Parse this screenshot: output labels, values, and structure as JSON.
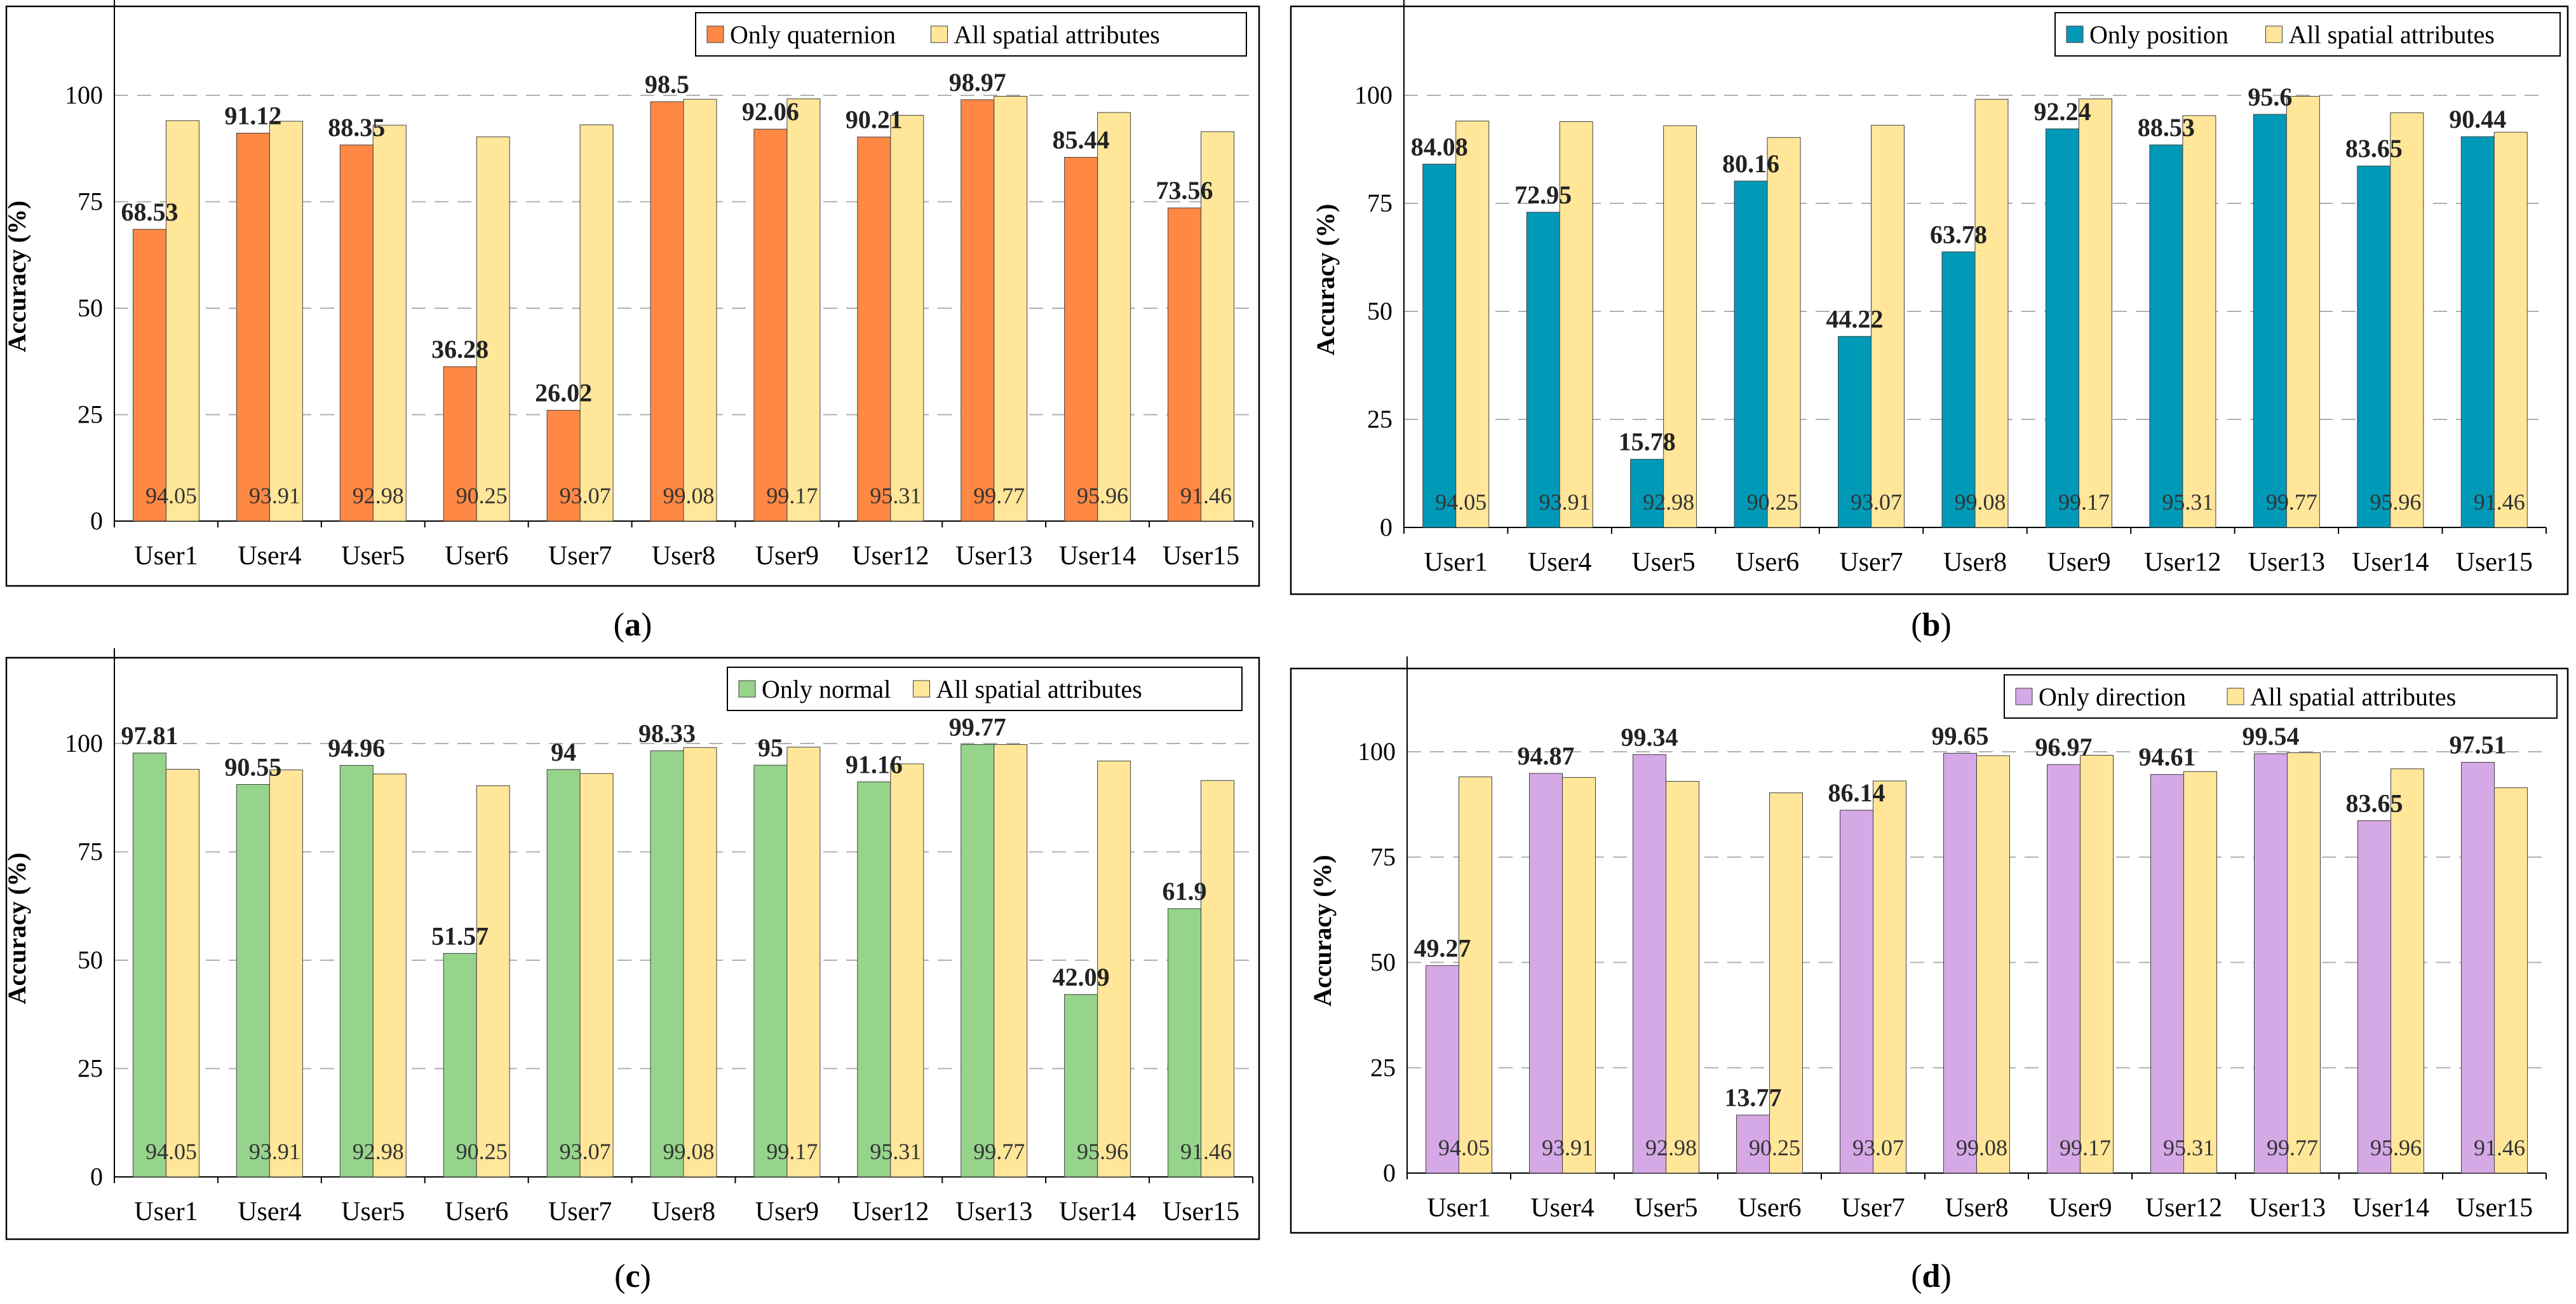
{
  "figure": {
    "comparison_name": "All spatial attributes",
    "comparison_color": "#FFE699",
    "bar_outline": "#404040"
  },
  "chart_data": [
    {
      "type": "bar",
      "panel_label": "(a)",
      "title": "",
      "xlabel": "",
      "ylabel": "Accuracy  (%)",
      "ylim": [
        0,
        115
      ],
      "yticks": [
        0,
        25,
        50,
        75,
        100
      ],
      "grid": true,
      "legend_position": "top-right",
      "categories": [
        "User1",
        "User4",
        "User5",
        "User6",
        "User7",
        "User8",
        "User9",
        "User12",
        "User13",
        "User14",
        "User15"
      ],
      "series": [
        {
          "name": "Only quaternion",
          "color": "#FF8844",
          "values": [
            68.53,
            91.12,
            88.35,
            36.28,
            26.02,
            98.5,
            92.06,
            90.21,
            98.97,
            85.44,
            73.56
          ]
        },
        {
          "name": "All spatial attributes",
          "color": "#FFE699",
          "values": [
            94.05,
            93.91,
            92.98,
            90.25,
            93.07,
            99.08,
            99.17,
            95.31,
            99.77,
            95.96,
            91.46
          ]
        }
      ]
    },
    {
      "type": "bar",
      "panel_label": "(b)",
      "title": "",
      "xlabel": "",
      "ylabel": "Accuracy  (%)",
      "ylim": [
        0,
        115
      ],
      "yticks": [
        0,
        25,
        50,
        75,
        100
      ],
      "grid": true,
      "legend_position": "top-right",
      "categories": [
        "User1",
        "User4",
        "User5",
        "User6",
        "User7",
        "User8",
        "User9",
        "User12",
        "User13",
        "User14",
        "User15"
      ],
      "series": [
        {
          "name": "Only position",
          "color": "#0099B8",
          "values": [
            84.08,
            72.95,
            15.78,
            80.16,
            44.22,
            63.78,
            92.24,
            88.53,
            95.6,
            83.65,
            90.44
          ]
        },
        {
          "name": "All spatial attributes",
          "color": "#FFE699",
          "values": [
            94.05,
            93.91,
            92.98,
            90.25,
            93.07,
            99.08,
            99.17,
            95.31,
            99.77,
            95.96,
            91.46
          ]
        }
      ]
    },
    {
      "type": "bar",
      "panel_label": "(c)",
      "title": "",
      "xlabel": "",
      "ylabel": "Accuracy  (%)",
      "ylim": [
        0,
        115
      ],
      "yticks": [
        0,
        25,
        50,
        75,
        100
      ],
      "grid": true,
      "legend_position": "top-right",
      "categories": [
        "User1",
        "User4",
        "User5",
        "User6",
        "User7",
        "User8",
        "User9",
        "User12",
        "User13",
        "User14",
        "User15"
      ],
      "series": [
        {
          "name": "Only normal",
          "color": "#96D48C",
          "values": [
            97.81,
            90.55,
            94.96,
            51.57,
            94,
            98.33,
            95,
            91.16,
            99.77,
            42.09,
            61.9
          ]
        },
        {
          "name": "All spatial attributes",
          "color": "#FFE699",
          "values": [
            94.05,
            93.91,
            92.98,
            90.25,
            93.07,
            99.08,
            99.17,
            95.31,
            99.77,
            95.96,
            91.46
          ]
        }
      ]
    },
    {
      "type": "bar",
      "panel_label": "(d)",
      "title": "",
      "xlabel": "",
      "ylabel": "Accuracy  (%)",
      "ylim": [
        0,
        115
      ],
      "yticks": [
        0,
        25,
        50,
        75,
        100
      ],
      "grid": true,
      "legend_position": "top-right",
      "categories": [
        "User1",
        "User4",
        "User5",
        "User6",
        "User7",
        "User8",
        "User9",
        "User12",
        "User13",
        "User14",
        "User15"
      ],
      "series": [
        {
          "name": "Only direction",
          "color": "#D5A8E6",
          "values": [
            49.27,
            94.87,
            99.34,
            13.77,
            86.14,
            99.65,
            96.97,
            94.61,
            99.54,
            83.65,
            97.51
          ]
        },
        {
          "name": "All spatial attributes",
          "color": "#FFE699",
          "values": [
            94.05,
            93.91,
            92.98,
            90.25,
            93.07,
            99.08,
            99.17,
            95.31,
            99.77,
            95.96,
            91.46
          ]
        }
      ]
    }
  ]
}
